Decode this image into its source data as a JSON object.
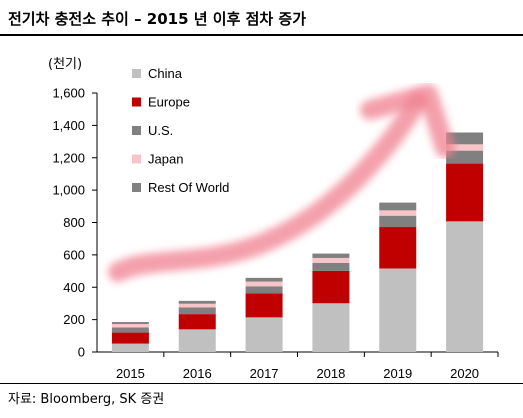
{
  "header": {
    "title": "전기차 충전소 추이 – 2015 년 이후 점차 증가"
  },
  "footer": {
    "source": "자료: Bloomberg, SK 증권"
  },
  "chart_data": {
    "type": "bar",
    "stacked": true,
    "unit": "(천기)",
    "categories": [
      "2015",
      "2016",
      "2017",
      "2018",
      "2019",
      "2020"
    ],
    "series": [
      {
        "name": "China",
        "color": "#c0c0c0",
        "values": [
          52,
          140,
          214,
          301,
          516,
          807
        ]
      },
      {
        "name": "Europe",
        "color": "#c00000",
        "values": [
          68,
          94,
          149,
          200,
          256,
          357
        ]
      },
      {
        "name": "U.S.",
        "color": "#808080",
        "values": [
          32,
          41,
          43,
          50,
          70,
          80
        ]
      },
      {
        "name": "Japan",
        "color": "#f7c4c8",
        "values": [
          21,
          23,
          29,
          30,
          33,
          39
        ]
      },
      {
        "name": "Rest Of World",
        "color": "#808080",
        "values": [
          12,
          18,
          23,
          27,
          48,
          73
        ]
      }
    ],
    "yticks": [
      0,
      200,
      400,
      600,
      800,
      1000,
      1200,
      1400,
      1600
    ],
    "ytick_labels": [
      "0",
      "200",
      "400",
      "600",
      "800",
      "1,000",
      "1,200",
      "1,400",
      "1,600"
    ],
    "ylim": [
      0,
      1600
    ],
    "legend_position": "top-left inside plot",
    "annotation": "hand-drawn red upward arrow over bars"
  }
}
